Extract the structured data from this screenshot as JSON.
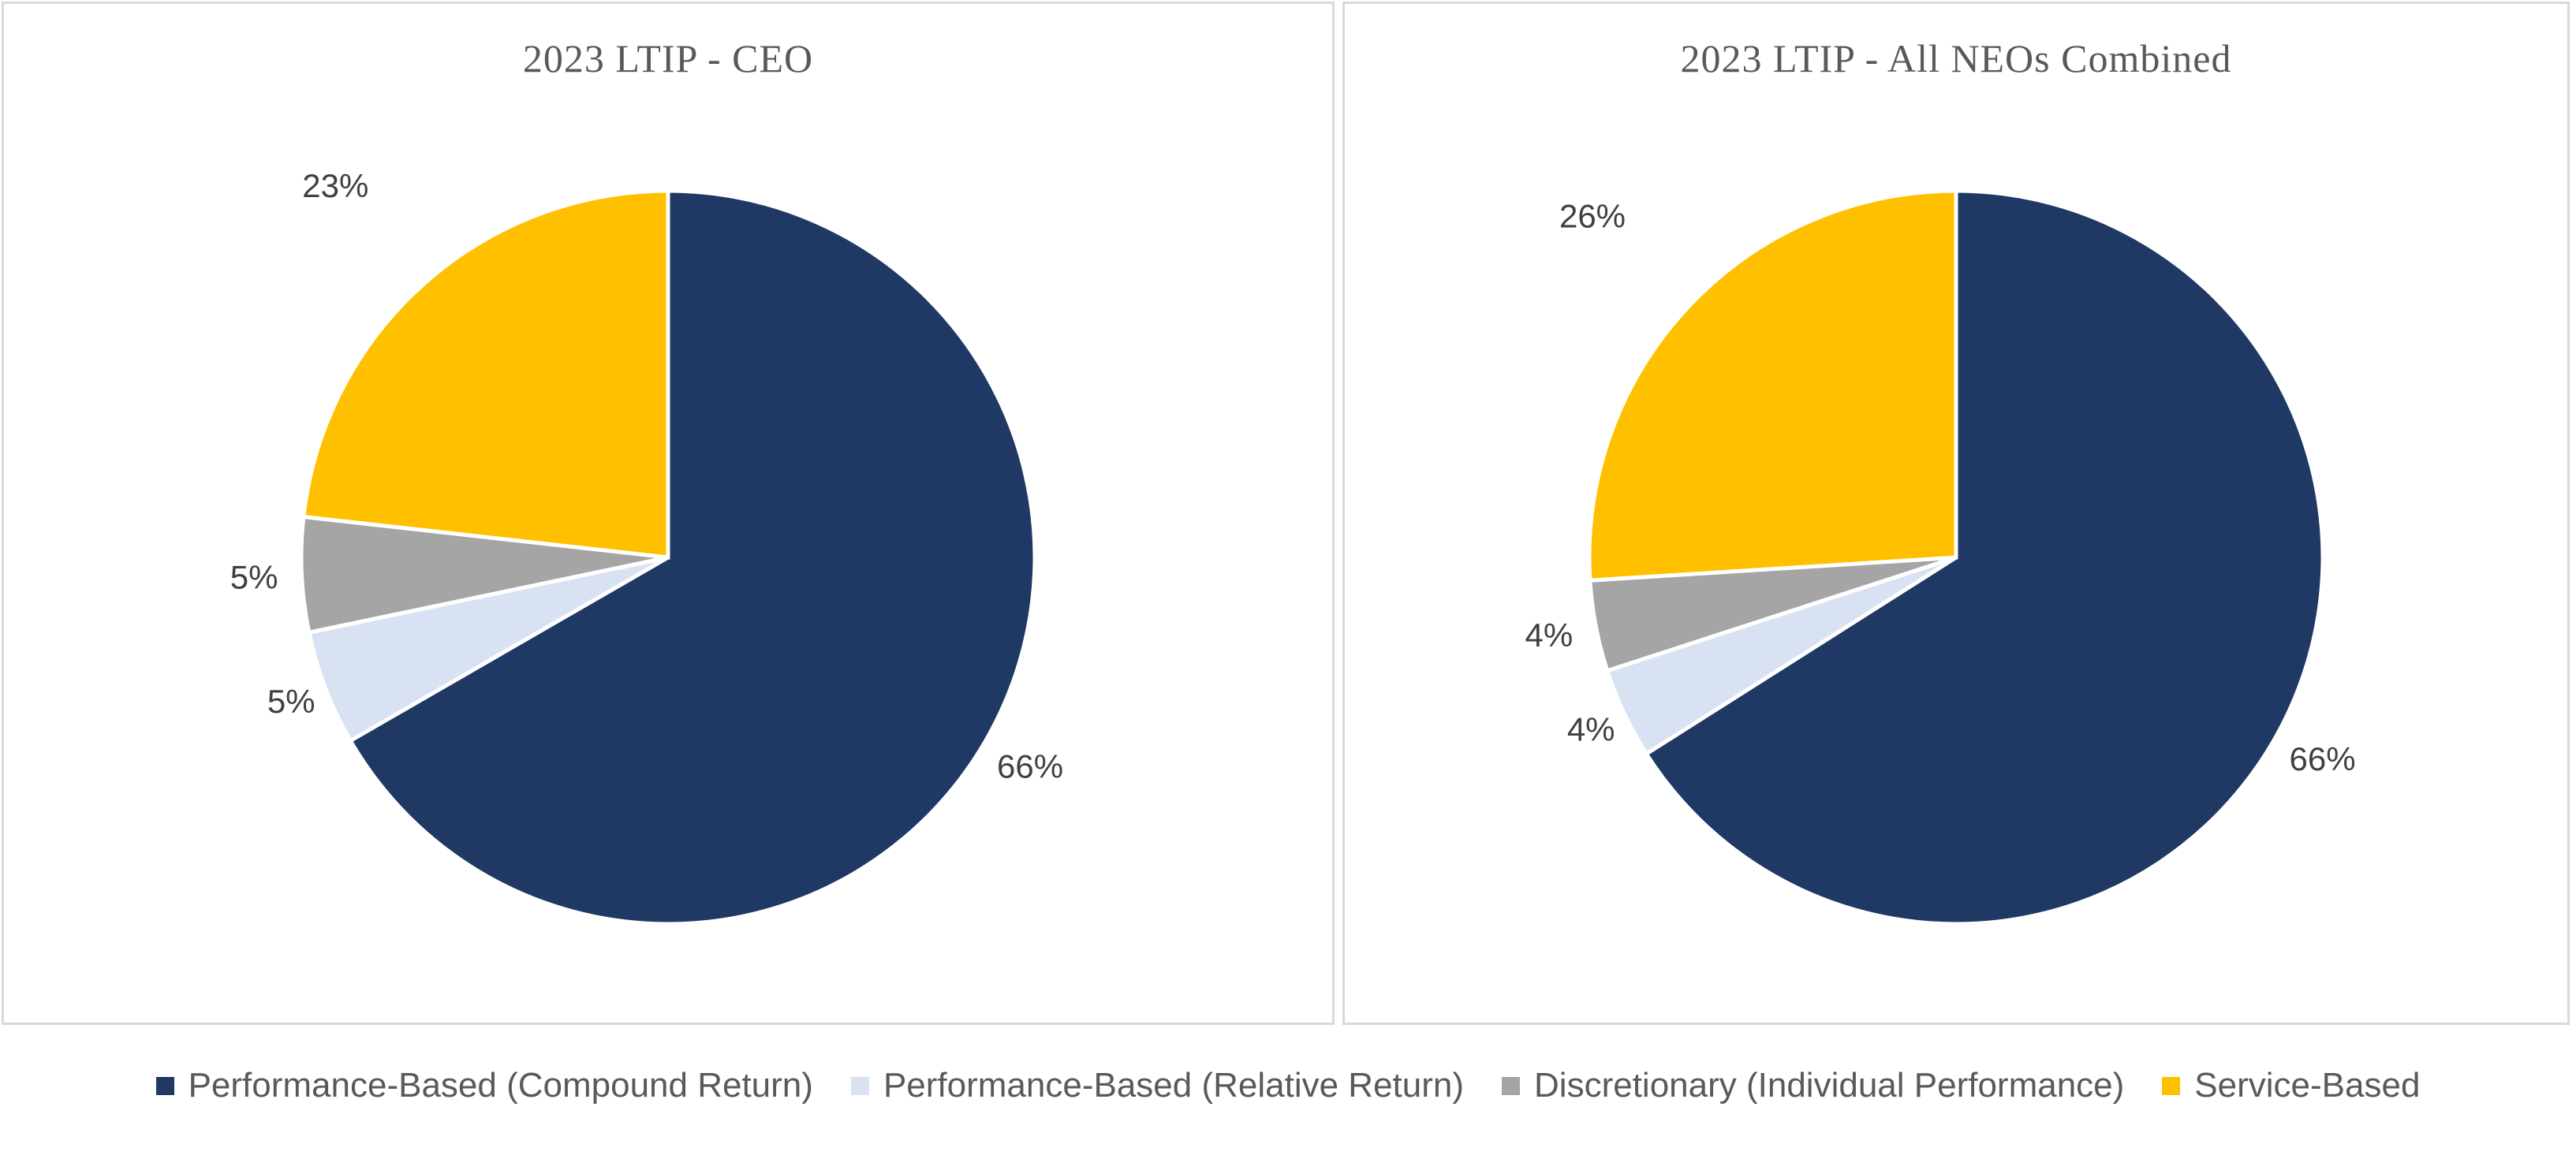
{
  "window": {
    "background": "#FFFFFF"
  },
  "colors": {
    "navy": "#1F3864",
    "light_blue": "#D9E2F3",
    "gray": "#A5A5A5",
    "gold": "#FFC000",
    "title_text": "#595959",
    "legend_text": "#595959",
    "data_label_text": "#404040",
    "panel_border": "#D9D9D9",
    "slice_separator": "#FFFFFF"
  },
  "chart_data": [
    {
      "type": "pie",
      "title": "2023 LTIP - CEO",
      "direction": "clockwise",
      "start_angle_deg": 0,
      "labels_position": "outside",
      "legend_position": "bottom",
      "slices": [
        {
          "name": "Performance-Based (Compound Return)",
          "value_pct": 66,
          "data_label": "66%",
          "color": "#1F3864",
          "label_radius_factor": 1.14
        },
        {
          "name": "Performance-Based (Relative Return)",
          "value_pct": 5,
          "data_label": "5%",
          "color": "#D9E2F3",
          "label_radius_factor": 1.1
        },
        {
          "name": "Discretionary (Individual Performance)",
          "value_pct": 5,
          "data_label": "5%",
          "color": "#A5A5A5",
          "label_radius_factor": 1.13
        },
        {
          "name": "Service-Based",
          "value_pct": 23,
          "data_label": "23%",
          "color": "#FFC000",
          "label_radius_factor": 1.36
        }
      ]
    },
    {
      "type": "pie",
      "title": "2023 LTIP - All NEOs Combined",
      "direction": "clockwise",
      "start_angle_deg": 0,
      "labels_position": "outside",
      "legend_position": "bottom",
      "slices": [
        {
          "name": "Performance-Based (Compound Return)",
          "value_pct": 66,
          "data_label": "66%",
          "color": "#1F3864",
          "label_radius_factor": 1.14
        },
        {
          "name": "Performance-Based (Relative Return)",
          "value_pct": 4,
          "data_label": "4%",
          "color": "#D9E2F3",
          "label_radius_factor": 1.1
        },
        {
          "name": "Discretionary (Individual Performance)",
          "value_pct": 4,
          "data_label": "4%",
          "color": "#A5A5A5",
          "label_radius_factor": 1.13
        },
        {
          "name": "Service-Based",
          "value_pct": 26,
          "data_label": "26%",
          "color": "#FFC000",
          "label_radius_factor": 1.36
        }
      ]
    }
  ],
  "legend": {
    "position": "bottom",
    "items": [
      {
        "label": "Performance-Based (Compound Return)",
        "color": "#1F3864"
      },
      {
        "label": "Performance-Based (Relative Return)",
        "color": "#D9E2F3"
      },
      {
        "label": "Discretionary (Individual Performance)",
        "color": "#A5A5A5"
      },
      {
        "label": "Service-Based",
        "color": "#FFC000"
      }
    ]
  }
}
